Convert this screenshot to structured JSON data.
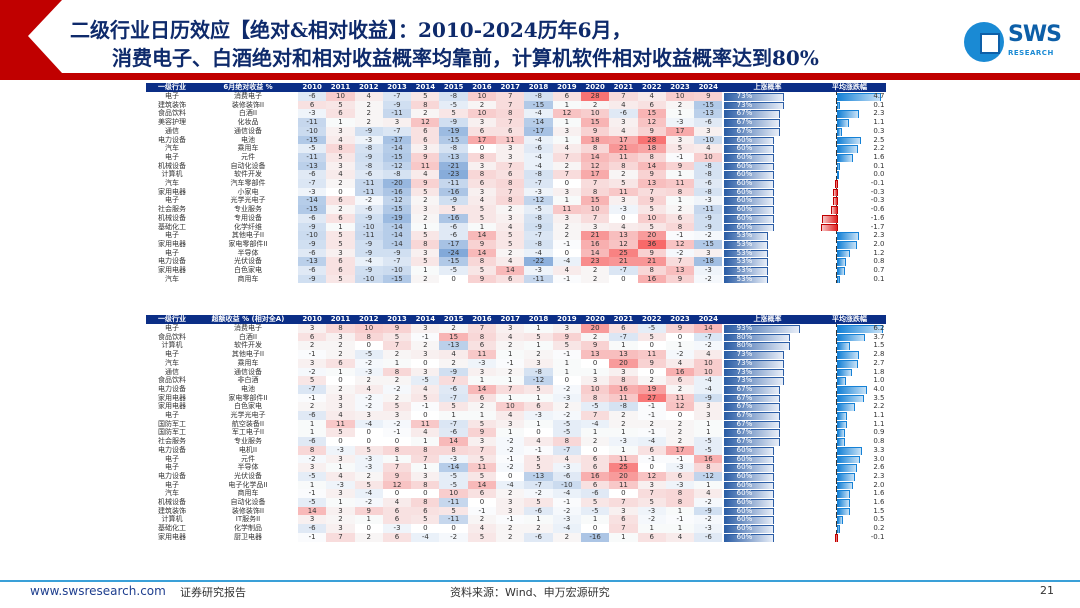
{
  "header": {
    "title_line1": "二级行业日历效应【绝对&相对收益】：2010-2024历年6月，",
    "title_line2": "消费电子、白酒绝对和相对收益概率均靠前，计算机软件相对收益概率达到80%",
    "logo_text": "SWS",
    "logo_sub": "RESEARCH"
  },
  "colors": {
    "header_bg": "#0b2e86",
    "positive": "#e05050",
    "negative": "#4f7cc0",
    "brand_red": "#c00000"
  },
  "years": [
    "2010",
    "2011",
    "2012",
    "2013",
    "2014",
    "2015",
    "2016",
    "2017",
    "2018",
    "2019",
    "2020",
    "2021",
    "2022",
    "2023",
    "2024"
  ],
  "table1": {
    "col1": "一级行业",
    "col2": "6月绝对收益 %",
    "col_prob": "上涨概率",
    "col_avg": "平均涨跌幅",
    "rows": [
      {
        "l1": "电子",
        "l2": "消费电子",
        "v": [
          -6,
          10,
          4,
          -7,
          5,
          -8,
          10,
          7,
          -8,
          6,
          28,
          7,
          4,
          10,
          9
        ],
        "p": "73%",
        "a": 4.7
      },
      {
        "l1": "建筑装饰",
        "l2": "装修装饰II",
        "v": [
          6,
          5,
          2,
          -9,
          8,
          -5,
          2,
          7,
          -15,
          1,
          2,
          4,
          6,
          2,
          -15
        ],
        "p": "73%",
        "a": 0.1
      },
      {
        "l1": "食品饮料",
        "l2": "白酒II",
        "v": [
          -3,
          6,
          2,
          -11,
          2,
          5,
          10,
          8,
          -4,
          12,
          10,
          -6,
          15,
          1,
          -13
        ],
        "p": "67%",
        "a": 2.3
      },
      {
        "l1": "美容护理",
        "l2": "化妆品",
        "v": [
          -11,
          1,
          2,
          3,
          12,
          -9,
          3,
          7,
          -14,
          1,
          15,
          3,
          12,
          -3,
          -6
        ],
        "p": "67%",
        "a": 1.1
      },
      {
        "l1": "通信",
        "l2": "通信设备",
        "v": [
          -10,
          3,
          -9,
          -7,
          6,
          -19,
          6,
          6,
          -17,
          3,
          9,
          4,
          9,
          17,
          3
        ],
        "p": "67%",
        "a": 0.3
      },
      {
        "l1": "电力设备",
        "l2": "电池",
        "v": [
          -15,
          4,
          -3,
          -17,
          6,
          -15,
          17,
          11,
          -4,
          1,
          18,
          17,
          28,
          3,
          -10
        ],
        "p": "60%",
        "a": 2.5
      },
      {
        "l1": "汽车",
        "l2": "乘用车",
        "v": [
          -5,
          8,
          -8,
          -14,
          3,
          -8,
          0,
          3,
          -6,
          4,
          8,
          21,
          18,
          5,
          4
        ],
        "p": "60%",
        "a": 2.2
      },
      {
        "l1": "电子",
        "l2": "元件",
        "v": [
          -11,
          5,
          -9,
          -15,
          9,
          -13,
          8,
          3,
          -4,
          7,
          14,
          11,
          8,
          -1,
          10
        ],
        "p": "60%",
        "a": 1.6
      },
      {
        "l1": "机械设备",
        "l2": "自动化设备",
        "v": [
          -13,
          3,
          -8,
          -12,
          11,
          -21,
          3,
          7,
          -4,
          2,
          12,
          8,
          14,
          9,
          -8
        ],
        "p": "60%",
        "a": 0.1
      },
      {
        "l1": "计算机",
        "l2": "软件开发",
        "v": [
          -6,
          4,
          -6,
          -8,
          4,
          -23,
          8,
          6,
          -8,
          7,
          17,
          2,
          9,
          1,
          -8
        ],
        "p": "60%",
        "a": 0.0
      },
      {
        "l1": "汽车",
        "l2": "汽车零部件",
        "v": [
          -7,
          2,
          -11,
          -20,
          9,
          -11,
          6,
          8,
          -7,
          0,
          7,
          5,
          13,
          11,
          -6
        ],
        "p": "60%",
        "a": -0.1
      },
      {
        "l1": "家用电器",
        "l2": "小家电",
        "v": [
          -3,
          0,
          -11,
          -16,
          5,
          -16,
          3,
          7,
          -3,
          3,
          8,
          11,
          7,
          8,
          -8
        ],
        "p": "60%",
        "a": -0.3
      },
      {
        "l1": "电子",
        "l2": "光学光电子",
        "v": [
          -14,
          6,
          -2,
          -12,
          2,
          -9,
          4,
          8,
          -12,
          1,
          15,
          3,
          9,
          1,
          -3
        ],
        "p": "60%",
        "a": -0.3
      },
      {
        "l1": "社会服务",
        "l2": "专业服务",
        "v": [
          -15,
          2,
          -6,
          -15,
          3,
          5,
          5,
          2,
          -5,
          11,
          10,
          -3,
          5,
          2,
          -11
        ],
        "p": "60%",
        "a": -0.6
      },
      {
        "l1": "机械设备",
        "l2": "专用设备",
        "v": [
          -6,
          6,
          -9,
          -19,
          2,
          -16,
          5,
          3,
          -8,
          3,
          7,
          0,
          10,
          6,
          -9
        ],
        "p": "60%",
        "a": -1.6
      },
      {
        "l1": "基础化工",
        "l2": "化学纤维",
        "v": [
          -9,
          1,
          -10,
          -14,
          1,
          -6,
          1,
          4,
          -9,
          2,
          3,
          4,
          5,
          8,
          -9
        ],
        "p": "60%",
        "a": -1.7
      },
      {
        "l1": "电子",
        "l2": "其他电子II",
        "v": [
          -10,
          5,
          -11,
          -14,
          5,
          -6,
          14,
          5,
          -7,
          2,
          21,
          13,
          20,
          -1,
          -2
        ],
        "p": "53%",
        "a": 2.3
      },
      {
        "l1": "家用电器",
        "l2": "家电零部件II",
        "v": [
          -9,
          5,
          -9,
          -14,
          8,
          -17,
          9,
          5,
          -8,
          -1,
          16,
          12,
          36,
          12,
          -15
        ],
        "p": "53%",
        "a": 2.0
      },
      {
        "l1": "电子",
        "l2": "半导体",
        "v": [
          -6,
          3,
          -9,
          -9,
          3,
          -24,
          14,
          2,
          -4,
          0,
          14,
          25,
          9,
          -2,
          3
        ],
        "p": "53%",
        "a": 1.2
      },
      {
        "l1": "电力设备",
        "l2": "光伏设备",
        "v": [
          -13,
          6,
          -4,
          -7,
          5,
          -15,
          8,
          4,
          -22,
          -4,
          23,
          21,
          21,
          7,
          -18
        ],
        "p": "53%",
        "a": 0.8
      },
      {
        "l1": "家用电器",
        "l2": "白色家电",
        "v": [
          -6,
          6,
          -9,
          -10,
          1,
          -5,
          5,
          14,
          -3,
          4,
          2,
          -7,
          8,
          13,
          -3
        ],
        "p": "53%",
        "a": 0.7
      },
      {
        "l1": "汽车",
        "l2": "商用车",
        "v": [
          -9,
          5,
          -10,
          -15,
          2,
          0,
          9,
          6,
          -11,
          -1,
          2,
          0,
          16,
          9,
          -2
        ],
        "p": "53%",
        "a": 0.1
      }
    ]
  },
  "table2": {
    "col1": "一级行业",
    "col2": "超额收益 % (相对全A)",
    "col_prob": "上涨概率",
    "col_avg": "平均涨跌幅",
    "rows": [
      {
        "l1": "电子",
        "l2": "消费电子",
        "v": [
          3,
          8,
          10,
          9,
          3,
          2,
          7,
          3,
          1,
          3,
          20,
          6,
          -5,
          9,
          14
        ],
        "p": "93%",
        "a": 6.2
      },
      {
        "l1": "食品饮料",
        "l2": "白酒II",
        "v": [
          6,
          3,
          8,
          5,
          -1,
          15,
          8,
          4,
          5,
          9,
          2,
          -7,
          5,
          0,
          -7
        ],
        "p": "80%",
        "a": 3.7
      },
      {
        "l1": "计算机",
        "l2": "软件开发",
        "v": [
          2,
          2,
          0,
          7,
          2,
          -13,
          6,
          2,
          1,
          5,
          9,
          1,
          0,
          1,
          -2
        ],
        "p": "80%",
        "a": 1.5
      },
      {
        "l1": "电子",
        "l2": "其他电子II",
        "v": [
          -1,
          2,
          -5,
          2,
          3,
          4,
          11,
          1,
          2,
          -1,
          13,
          13,
          11,
          -2,
          4
        ],
        "p": "73%",
        "a": 2.8
      },
      {
        "l1": "汽车",
        "l2": "乘用车",
        "v": [
          3,
          6,
          -2,
          1,
          0,
          2,
          -3,
          -1,
          3,
          1,
          0,
          20,
          9,
          4,
          10
        ],
        "p": "73%",
        "a": 2.7
      },
      {
        "l1": "通信",
        "l2": "通信设备",
        "v": [
          -2,
          1,
          -3,
          8,
          3,
          -9,
          3,
          2,
          -8,
          1,
          1,
          3,
          0,
          16,
          10
        ],
        "p": "73%",
        "a": 1.8
      },
      {
        "l1": "食品饮料",
        "l2": "非白酒",
        "v": [
          5,
          0,
          2,
          2,
          -5,
          7,
          1,
          1,
          -12,
          0,
          3,
          8,
          2,
          6,
          -4
        ],
        "p": "73%",
        "a": 1.0
      },
      {
        "l1": "电力设备",
        "l2": "电池",
        "v": [
          -7,
          2,
          4,
          -2,
          4,
          -6,
          14,
          7,
          5,
          -2,
          10,
          16,
          19,
          2,
          -4
        ],
        "p": "67%",
        "a": 4.0
      },
      {
        "l1": "家用电器",
        "l2": "家电零部件II",
        "v": [
          -1,
          3,
          -2,
          2,
          5,
          -7,
          6,
          1,
          1,
          -3,
          8,
          11,
          27,
          11,
          -9
        ],
        "p": "67%",
        "a": 3.5
      },
      {
        "l1": "家用电器",
        "l2": "白色家电",
        "v": [
          2,
          3,
          -2,
          5,
          -1,
          5,
          2,
          10,
          6,
          2,
          -5,
          -8,
          -1,
          12,
          3
        ],
        "p": "67%",
        "a": 2.2
      },
      {
        "l1": "电子",
        "l2": "光学光电子",
        "v": [
          -6,
          4,
          3,
          3,
          0,
          1,
          1,
          4,
          -3,
          -2,
          7,
          2,
          -1,
          0,
          3
        ],
        "p": "67%",
        "a": 1.1
      },
      {
        "l1": "国防军工",
        "l2": "航空装备II",
        "v": [
          1,
          11,
          -4,
          -2,
          11,
          -7,
          5,
          3,
          1,
          -5,
          -4,
          2,
          2,
          2,
          1
        ],
        "p": "67%",
        "a": 1.1
      },
      {
        "l1": "国防军工",
        "l2": "军工电子II",
        "v": [
          1,
          5,
          0,
          -1,
          4,
          -6,
          9,
          1,
          0,
          -5,
          1,
          1,
          -1,
          2,
          1
        ],
        "p": "67%",
        "a": 0.9
      },
      {
        "l1": "社会服务",
        "l2": "专业服务",
        "v": [
          -6,
          0,
          0,
          0,
          1,
          14,
          3,
          -2,
          4,
          8,
          2,
          -3,
          -4,
          2,
          -5
        ],
        "p": "67%",
        "a": 0.8
      },
      {
        "l1": "电力设备",
        "l2": "电机II",
        "v": [
          8,
          -3,
          5,
          8,
          8,
          8,
          7,
          -2,
          -1,
          -7,
          0,
          1,
          6,
          17,
          -5
        ],
        "p": "60%",
        "a": 3.3
      },
      {
        "l1": "电子",
        "l2": "元件",
        "v": [
          -2,
          3,
          -3,
          1,
          7,
          -3,
          5,
          -1,
          5,
          4,
          6,
          11,
          -1,
          -1,
          16
        ],
        "p": "60%",
        "a": 3.0
      },
      {
        "l1": "电子",
        "l2": "半导体",
        "v": [
          3,
          1,
          -3,
          7,
          1,
          -14,
          11,
          -2,
          5,
          -3,
          6,
          25,
          0,
          -3,
          8
        ],
        "p": "60%",
        "a": 2.6
      },
      {
        "l1": "电力设备",
        "l2": "光伏设备",
        "v": [
          -5,
          4,
          2,
          9,
          3,
          -5,
          5,
          0,
          -13,
          -6,
          16,
          20,
          12,
          6,
          -12
        ],
        "p": "60%",
        "a": 2.3
      },
      {
        "l1": "电子",
        "l2": "电子化学品II",
        "v": [
          1,
          -3,
          5,
          12,
          8,
          -5,
          14,
          -4,
          -7,
          -10,
          6,
          11,
          3,
          -3,
          1
        ],
        "p": "60%",
        "a": 2.0
      },
      {
        "l1": "汽车",
        "l2": "商用车",
        "v": [
          -1,
          3,
          -4,
          0,
          0,
          10,
          6,
          2,
          -2,
          -4,
          -6,
          0,
          7,
          8,
          4
        ],
        "p": "60%",
        "a": 1.6
      },
      {
        "l1": "机械设备",
        "l2": "自动化设备",
        "v": [
          -5,
          1,
          -2,
          4,
          8,
          -11,
          0,
          3,
          5,
          -1,
          5,
          7,
          5,
          8,
          -2
        ],
        "p": "60%",
        "a": 1.6
      },
      {
        "l1": "建筑装饰",
        "l2": "装修装饰II",
        "v": [
          14,
          3,
          9,
          6,
          6,
          5,
          -1,
          3,
          -6,
          -2,
          -5,
          3,
          -3,
          1,
          -9
        ],
        "p": "60%",
        "a": 1.5
      },
      {
        "l1": "计算机",
        "l2": "IT服务II",
        "v": [
          3,
          2,
          1,
          6,
          5,
          -11,
          2,
          -1,
          1,
          -3,
          1,
          6,
          -2,
          -1,
          -2
        ],
        "p": "60%",
        "a": 0.5
      },
      {
        "l1": "基础化工",
        "l2": "化学制品",
        "v": [
          -6,
          3,
          0,
          -3,
          0,
          0,
          4,
          2,
          2,
          -4,
          0,
          7,
          1,
          1,
          -3
        ],
        "p": "60%",
        "a": 0.2
      },
      {
        "l1": "家用电器",
        "l2": "厨卫电器",
        "v": [
          -1,
          7,
          2,
          6,
          -4,
          -2,
          5,
          2,
          -6,
          2,
          -16,
          1,
          6,
          4,
          -6
        ],
        "p": "60%",
        "a": -0.1
      }
    ]
  },
  "footer": {
    "url": "www.swsresearch.com",
    "doc_type": "证券研究报告",
    "source": "资料来源：Wind、申万宏源研究",
    "page": "21"
  }
}
